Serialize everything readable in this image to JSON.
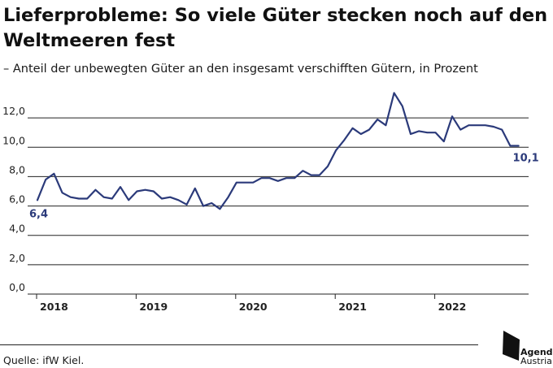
{
  "header": {
    "title": "Lieferprobleme: So viele Güter stecken noch auf den Weltmeeren fest",
    "subtitle": "– Anteil der unbewegten Güter an den insgesamt verschifften Gütern, in Prozent"
  },
  "footer": {
    "source": "Quelle: ifW Kiel.",
    "logo_line1": "Agenda",
    "logo_line2": "Austria"
  },
  "colors": {
    "line": "#2b3a7a",
    "grid": "#222222",
    "text": "#1a1a1a"
  },
  "chart_data": {
    "type": "line",
    "title": "Lieferprobleme: So viele Güter stecken noch auf den Weltmeeren fest",
    "subtitle": "– Anteil der unbewegten Güter an den insgesamt verschifften Gütern, in Prozent",
    "xlabel": "",
    "ylabel": "",
    "x_ticks": [
      "2018",
      "2019",
      "2020",
      "2021",
      "2022"
    ],
    "y_ticks": [
      "0,0",
      "2,0",
      "4,0",
      "6,0",
      "8,0",
      "10,0",
      "12,0"
    ],
    "ylim": [
      0,
      14
    ],
    "grid": "horizontal",
    "annotations": [
      {
        "text": "6,4",
        "point": "first"
      },
      {
        "text": "10,1",
        "point": "last"
      }
    ],
    "series": [
      {
        "x": [
          "2018-01",
          "2018-02",
          "2018-03",
          "2018-04",
          "2018-05",
          "2018-06",
          "2018-07",
          "2018-08",
          "2018-09",
          "2018-10",
          "2018-11",
          "2018-12",
          "2019-01",
          "2019-02",
          "2019-03",
          "2019-04",
          "2019-05",
          "2019-06",
          "2019-07",
          "2019-08",
          "2019-09",
          "2019-10",
          "2019-11",
          "2019-12",
          "2020-01",
          "2020-02",
          "2020-03",
          "2020-04",
          "2020-05",
          "2020-06",
          "2020-07",
          "2020-08",
          "2020-09",
          "2020-10",
          "2020-11",
          "2020-12",
          "2021-01",
          "2021-02",
          "2021-03",
          "2021-04",
          "2021-05",
          "2021-06",
          "2021-07",
          "2021-08",
          "2021-09",
          "2021-10",
          "2021-11",
          "2021-12",
          "2022-01",
          "2022-02",
          "2022-03",
          "2022-04",
          "2022-05",
          "2022-06",
          "2022-07",
          "2022-08",
          "2022-09",
          "2022-10",
          "2022-11"
        ],
        "values": [
          6.4,
          7.8,
          8.2,
          6.9,
          6.6,
          6.5,
          6.5,
          7.1,
          6.6,
          6.5,
          7.3,
          6.4,
          7.0,
          7.1,
          7.0,
          6.5,
          6.6,
          6.4,
          6.1,
          7.2,
          6.0,
          6.2,
          5.8,
          6.6,
          7.6,
          7.6,
          7.6,
          7.9,
          7.9,
          7.7,
          7.9,
          7.9,
          8.4,
          8.1,
          8.1,
          8.7,
          9.8,
          10.5,
          11.3,
          10.9,
          11.2,
          11.9,
          11.5,
          13.7,
          12.8,
          10.9,
          11.1,
          11.0,
          11.0,
          10.4,
          12.1,
          11.2,
          11.5,
          11.5,
          11.5,
          11.4,
          11.2,
          10.1,
          10.1
        ]
      }
    ]
  }
}
